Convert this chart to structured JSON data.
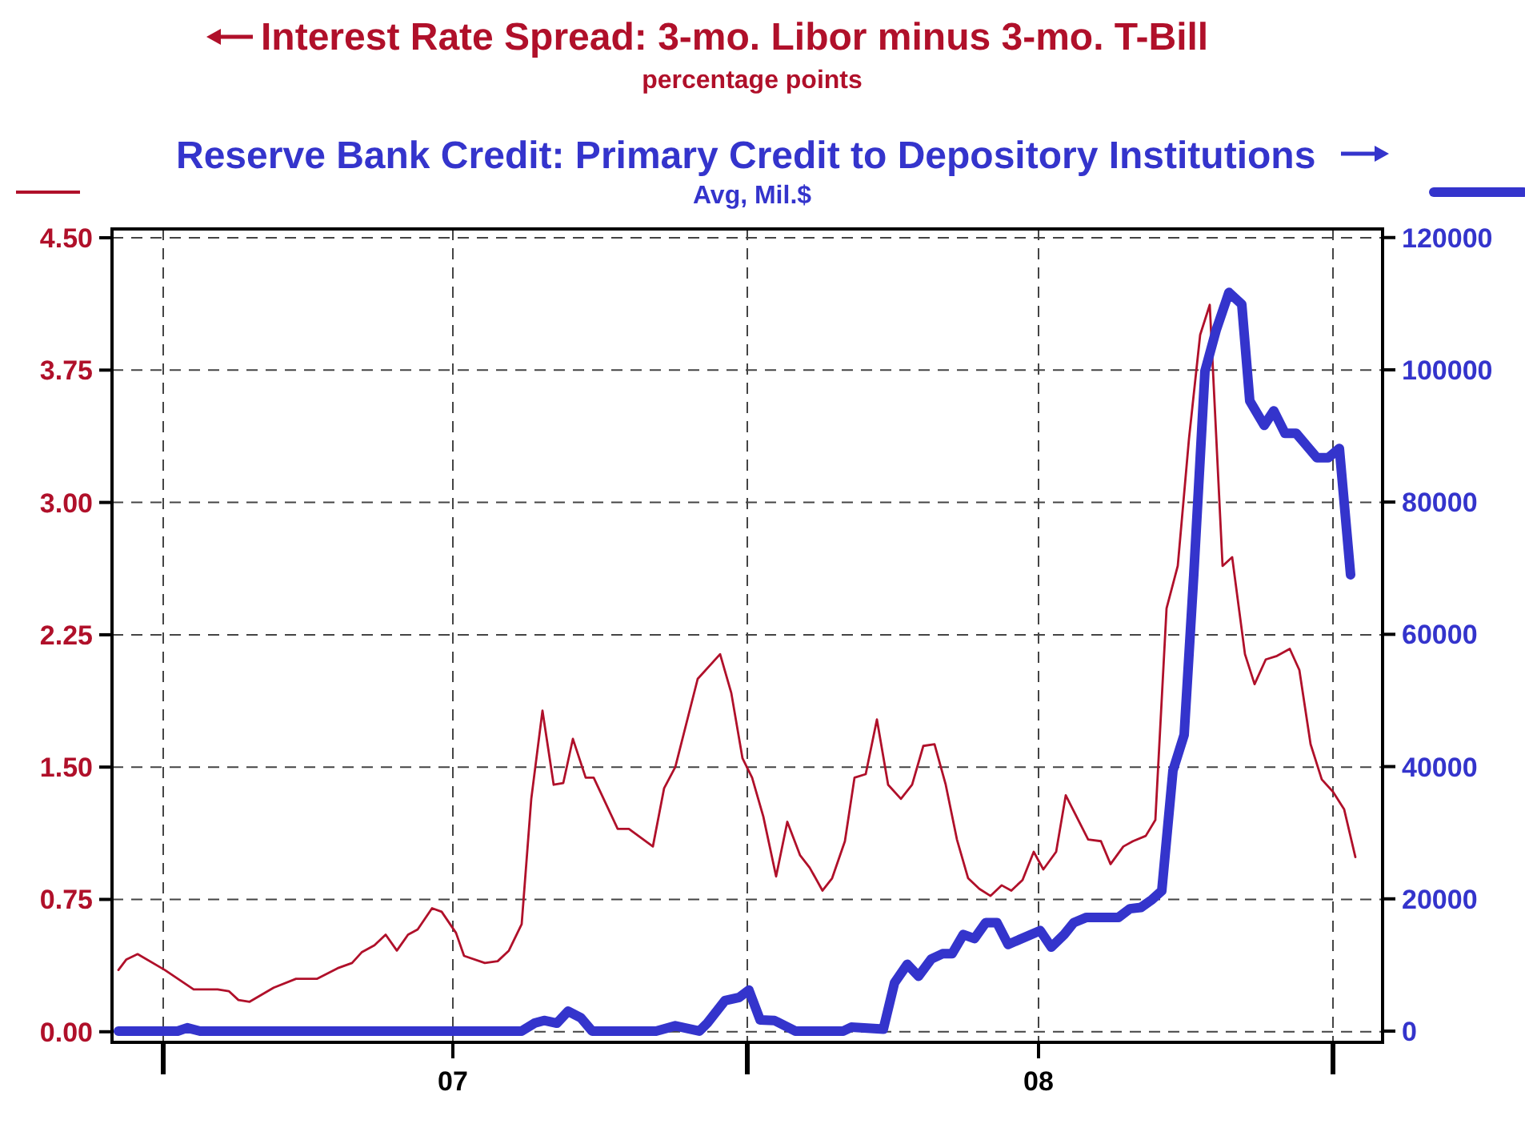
{
  "chart_data": {
    "type": "line",
    "annotations": [
      "percentage points",
      "Avg, Mil.$"
    ],
    "legend": "top",
    "grid": true,
    "xlim": [
      "2006-11-30",
      "2009-02-01"
    ],
    "xticks": [
      {
        "value": "2007-01-01",
        "label": null
      },
      {
        "value": "2007-07-01",
        "label": "07"
      },
      {
        "value": "2008-01-01",
        "label": null
      },
      {
        "value": "2008-07-01",
        "label": "08"
      },
      {
        "value": "2009-01-01",
        "label": null
      }
    ],
    "ylim": [
      -0.06,
      4.55
    ],
    "yticks": [
      {
        "value": 0,
        "label": "0.00"
      },
      {
        "value": 0.75,
        "label": "0.75"
      },
      {
        "value": 1.5,
        "label": "1.50"
      },
      {
        "value": 2.25,
        "label": "2.25"
      },
      {
        "value": 3,
        "label": "3.00"
      },
      {
        "value": 3.75,
        "label": "3.75"
      },
      {
        "value": 4.5,
        "label": "4.50"
      }
    ],
    "y2lim": [
      -1700,
      121300
    ],
    "y2ticks": [
      0,
      20000,
      40000,
      60000,
      80000,
      100000,
      120000
    ],
    "series": [
      {
        "name": "Interest Rate Spread: 3-mo. Libor minus 3-mo. T-Bill",
        "color": "#b0102a",
        "x": [
          "2006-12-04",
          "2006-12-09",
          "2006-12-16",
          "2007-01-02",
          "2007-01-20",
          "2007-02-04",
          "2007-02-11",
          "2007-02-17",
          "2007-02-24",
          "2007-03-11",
          "2007-03-25",
          "2007-04-07",
          "2007-04-20",
          "2007-04-29",
          "2007-05-05",
          "2007-05-13",
          "2007-05-20",
          "2007-05-27",
          "2007-06-03",
          "2007-06-09",
          "2007-06-18",
          "2007-06-24",
          "2007-07-03",
          "2007-07-08",
          "2007-07-21",
          "2007-07-29",
          "2007-08-05",
          "2007-08-13",
          "2007-08-19",
          "2007-08-26",
          "2007-09-02",
          "2007-09-08",
          "2007-09-14",
          "2007-09-22",
          "2007-09-27",
          "2007-10-12",
          "2007-10-19",
          "2007-11-03",
          "2007-11-10",
          "2007-11-17",
          "2007-12-01",
          "2007-12-15",
          "2007-12-22",
          "2007-12-29",
          "2008-01-04",
          "2008-01-11",
          "2008-01-19",
          "2008-01-26",
          "2008-02-03",
          "2008-02-09",
          "2008-02-17",
          "2008-02-23",
          "2008-03-02",
          "2008-03-08",
          "2008-03-15",
          "2008-03-22",
          "2008-03-29",
          "2008-04-06",
          "2008-04-13",
          "2008-04-20",
          "2008-04-27",
          "2008-05-04",
          "2008-05-11",
          "2008-05-18",
          "2008-05-25",
          "2008-06-01",
          "2008-06-08",
          "2008-06-14",
          "2008-06-21",
          "2008-06-28",
          "2008-07-04",
          "2008-07-12",
          "2008-07-18",
          "2008-08-01",
          "2008-08-09",
          "2008-08-15",
          "2008-08-23",
          "2008-08-29",
          "2008-09-06",
          "2008-09-12",
          "2008-09-19",
          "2008-09-26",
          "2008-10-03",
          "2008-10-10",
          "2008-10-16",
          "2008-10-24",
          "2008-10-30",
          "2008-11-07",
          "2008-11-13",
          "2008-11-20",
          "2008-11-27",
          "2008-12-05",
          "2008-12-11",
          "2008-12-18",
          "2008-12-25",
          "2009-01-01",
          "2009-01-08",
          "2009-01-15"
        ],
        "values": [
          0.35,
          0.41,
          0.44,
          0.35,
          0.24,
          0.24,
          0.23,
          0.18,
          0.17,
          0.25,
          0.3,
          0.3,
          0.36,
          0.39,
          0.45,
          0.49,
          0.55,
          0.46,
          0.55,
          0.58,
          0.7,
          0.68,
          0.56,
          0.43,
          0.39,
          0.4,
          0.46,
          0.61,
          1.32,
          1.82,
          1.4,
          1.41,
          1.66,
          1.44,
          1.44,
          1.15,
          1.15,
          1.05,
          1.38,
          1.5,
          2.0,
          2.14,
          1.92,
          1.55,
          1.44,
          1.22,
          0.88,
          1.19,
          1.0,
          0.93,
          0.8,
          0.87,
          1.08,
          1.44,
          1.46,
          1.77,
          1.4,
          1.32,
          1.4,
          1.62,
          1.63,
          1.4,
          1.09,
          0.87,
          0.81,
          0.77,
          0.83,
          0.8,
          0.86,
          1.02,
          0.92,
          1.02,
          1.34,
          1.09,
          1.08,
          0.95,
          1.05,
          1.08,
          1.11,
          1.2,
          2.4,
          2.64,
          3.36,
          3.95,
          4.12,
          2.64,
          2.69,
          2.14,
          1.97,
          2.11,
          2.13,
          2.17,
          2.05,
          1.63,
          1.43,
          1.36,
          1.26,
          0.99
        ]
      },
      {
        "name": "Reserve Bank Credit: Primary Credit to Depository Institutions",
        "color": "#3434cc",
        "axis": "y2",
        "x": [
          "2006-12-04",
          "2007-01-10",
          "2007-01-16",
          "2007-01-24",
          "2007-08-13",
          "2007-08-21",
          "2007-08-27",
          "2007-09-04",
          "2007-09-11",
          "2007-09-19",
          "2007-09-26",
          "2007-11-05",
          "2007-11-17",
          "2007-12-02",
          "2007-12-07",
          "2007-12-18",
          "2007-12-27",
          "2008-01-02",
          "2008-01-09",
          "2008-01-18",
          "2008-01-31",
          "2008-03-01",
          "2008-03-06",
          "2008-03-26",
          "2008-04-02",
          "2008-04-10",
          "2008-04-17",
          "2008-04-25",
          "2008-05-02",
          "2008-05-08",
          "2008-05-15",
          "2008-05-22",
          "2008-05-29",
          "2008-06-05",
          "2008-06-12",
          "2008-07-02",
          "2008-07-09",
          "2008-07-17",
          "2008-07-23",
          "2008-07-31",
          "2008-08-20",
          "2008-08-27",
          "2008-09-03",
          "2008-09-10",
          "2008-09-16",
          "2008-09-23",
          "2008-09-30",
          "2008-10-06",
          "2008-10-13",
          "2008-10-20",
          "2008-10-28",
          "2008-11-05",
          "2008-11-10",
          "2008-11-19",
          "2008-11-25",
          "2008-12-02",
          "2008-12-09",
          "2008-12-15",
          "2008-12-22",
          "2008-12-29",
          "2009-01-05",
          "2009-01-12"
        ],
        "values": [
          0,
          0,
          500,
          0,
          0,
          1200,
          1600,
          1200,
          3000,
          2000,
          0,
          0,
          800,
          0,
          1200,
          4600,
          5100,
          6200,
          1700,
          1600,
          0,
          0,
          600,
          300,
          7300,
          10100,
          8300,
          10900,
          11700,
          11700,
          14600,
          14000,
          16400,
          16400,
          13100,
          15200,
          12700,
          14600,
          16400,
          17200,
          17200,
          18500,
          18700,
          19900,
          21200,
          39400,
          44800,
          69000,
          99800,
          106000,
          111700,
          109900,
          95300,
          91600,
          93800,
          90400,
          90400,
          88700,
          86700,
          86700,
          88100,
          69000
        ]
      }
    ]
  }
}
